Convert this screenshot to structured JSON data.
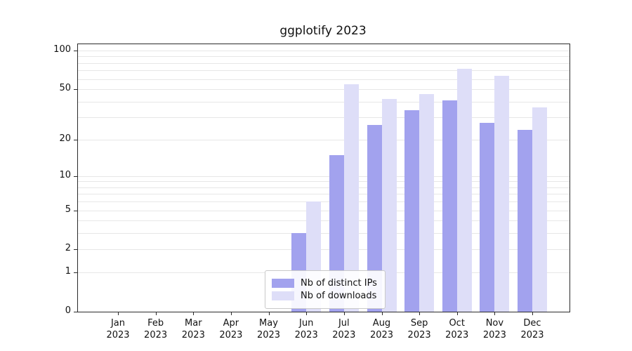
{
  "chart_data": {
    "type": "bar",
    "title": "ggplotify 2023",
    "categories": [
      "Jan",
      "Feb",
      "Mar",
      "Apr",
      "May",
      "Jun",
      "Jul",
      "Aug",
      "Sep",
      "Oct",
      "Nov",
      "Dec"
    ],
    "year": "2023",
    "series": [
      {
        "key": "distinct_ips",
        "name": "Nb of distinct IPs",
        "color": "#a2a2ee",
        "values": [
          0,
          0,
          0,
          0,
          0,
          3,
          15,
          26,
          34,
          41,
          27,
          24
        ]
      },
      {
        "key": "downloads",
        "name": "Nb of downloads",
        "color": "#dedef8",
        "values": [
          0,
          0,
          0,
          0,
          0,
          6,
          55,
          42,
          46,
          72,
          64,
          36
        ]
      }
    ],
    "y_scale": "log1p",
    "y_ticks": [
      0,
      1,
      2,
      5,
      10,
      20,
      50,
      100
    ],
    "y_gridlines": [
      1,
      2,
      3,
      4,
      5,
      6,
      7,
      8,
      9,
      10,
      20,
      30,
      40,
      50,
      60,
      70,
      80,
      90,
      100
    ],
    "ylim": [
      0,
      112
    ],
    "xlabel": "",
    "ylabel": "",
    "grid": true,
    "legend_position": "lower center"
  }
}
